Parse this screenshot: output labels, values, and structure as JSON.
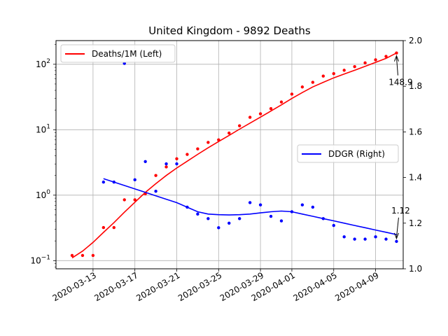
{
  "chart_data": {
    "type": "line",
    "title": "United Kingdom - 9892 Deaths",
    "xlabel": "",
    "ylabel_left": "",
    "ylabel_right": "",
    "grid": true,
    "x_tick_labels": [
      "2020-03-13",
      "2020-03-17",
      "2020-03-21",
      "2020-03-25",
      "2020-03-29",
      "2020-04-01",
      "2020-04-05",
      "2020-04-09"
    ],
    "y_left": {
      "scale": "log",
      "range": [
        0.075,
        230
      ],
      "ticks": [
        0.1,
        1,
        10,
        100
      ],
      "tick_labels": [
        "10",
        "10",
        "10",
        "10"
      ],
      "tick_exponents": [
        "−1",
        "0",
        "1",
        "2"
      ]
    },
    "y_right": {
      "scale": "linear",
      "range": [
        1.0,
        2.0
      ],
      "ticks": [
        1.0,
        1.2,
        1.4,
        1.6,
        1.8,
        2.0
      ],
      "tick_labels": [
        "1.0",
        "1.2",
        "1.4",
        "1.6",
        "1.8",
        "2.0"
      ]
    },
    "dates": [
      "2020-03-11",
      "2020-03-12",
      "2020-03-13",
      "2020-03-14",
      "2020-03-15",
      "2020-03-16",
      "2020-03-17",
      "2020-03-18",
      "2020-03-19",
      "2020-03-20",
      "2020-03-21",
      "2020-03-22",
      "2020-03-23",
      "2020-03-24",
      "2020-03-25",
      "2020-03-26",
      "2020-03-27",
      "2020-03-28",
      "2020-03-29",
      "2020-03-30",
      "2020-03-31",
      "2020-04-01",
      "2020-04-02",
      "2020-04-03",
      "2020-04-04",
      "2020-04-05",
      "2020-04-06",
      "2020-04-07",
      "2020-04-08",
      "2020-04-09",
      "2020-04-10",
      "2020-04-11"
    ],
    "series": [
      {
        "name": "Deaths/1M (Left)",
        "color": "#ff0000",
        "axis": "left",
        "points": [
          0.12,
          0.12,
          0.12,
          0.32,
          0.32,
          0.85,
          0.85,
          1.05,
          2.0,
          2.7,
          3.6,
          4.2,
          5.1,
          6.4,
          7.0,
          8.9,
          11.5,
          15.5,
          17.5,
          21.0,
          26.5,
          35.0,
          45.0,
          53.0,
          66.0,
          72.0,
          81.0,
          92.0,
          105.0,
          117.0,
          132.0,
          148.9
        ],
        "trend": [
          0.11,
          0.14,
          0.19,
          0.27,
          0.38,
          0.55,
          0.78,
          1.1,
          1.5,
          2.0,
          2.6,
          3.3,
          4.2,
          5.3,
          6.6,
          8.2,
          10.2,
          12.6,
          15.6,
          19.3,
          24.0,
          30.0,
          37.0,
          45.0,
          53.0,
          62.0,
          71.0,
          81.0,
          93.0,
          107.0,
          123.0,
          148.9
        ]
      },
      {
        "name": "DDGR (Right)",
        "color": "#0000ff",
        "axis": "right",
        "start_index": 3,
        "points": [
          null,
          null,
          null,
          1.38,
          1.38,
          1.9,
          1.39,
          1.47,
          1.34,
          1.46,
          1.46,
          1.27,
          1.24,
          1.22,
          1.18,
          1.2,
          1.22,
          1.29,
          1.28,
          1.23,
          1.21,
          1.25,
          1.28,
          1.27,
          1.22,
          1.19,
          1.14,
          1.13,
          1.13,
          1.14,
          1.13,
          1.12
        ],
        "trend": [
          null,
          null,
          null,
          1.395,
          1.38,
          1.365,
          1.35,
          1.335,
          1.32,
          1.305,
          1.29,
          1.27,
          1.25,
          1.24,
          1.237,
          1.236,
          1.237,
          1.24,
          1.245,
          1.25,
          1.253,
          1.25,
          1.24,
          1.23,
          1.22,
          1.21,
          1.2,
          1.19,
          1.18,
          1.17,
          1.16,
          1.15
        ]
      }
    ],
    "annotations": [
      {
        "text": "148.9",
        "series": 0
      },
      {
        "text": "1.12",
        "series": 1
      }
    ],
    "legends": [
      {
        "placement": "upper-left",
        "entry": "Deaths/1M (Left)",
        "color": "#ff0000"
      },
      {
        "placement": "center-right",
        "entry": "DDGR (Right)",
        "color": "#0000ff"
      }
    ]
  }
}
